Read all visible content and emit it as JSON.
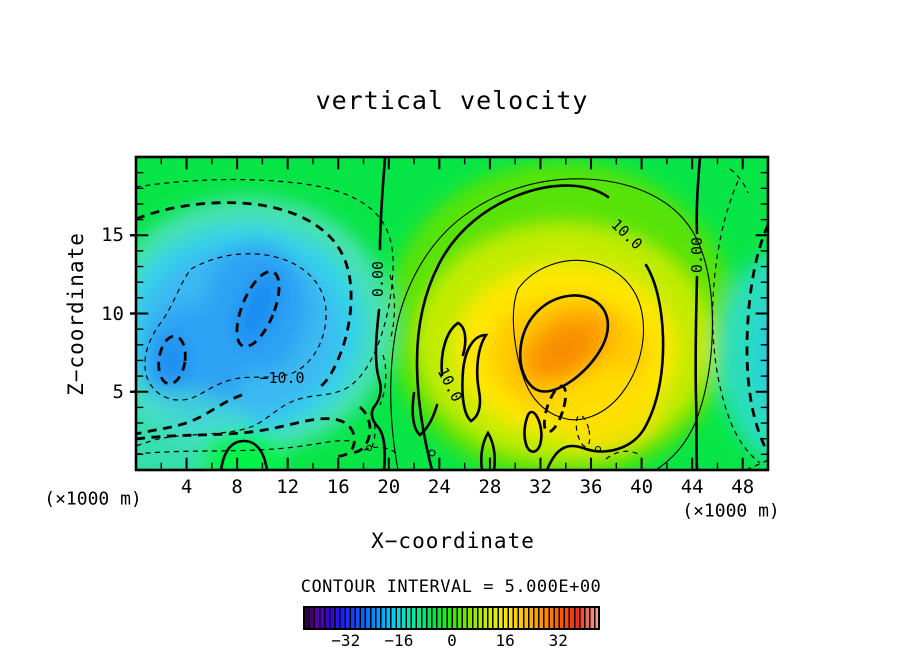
{
  "title": "vertical velocity",
  "y_axis": {
    "label": "Z−coordinate",
    "unit": "(×1000 m)",
    "ticks": [
      5,
      10,
      15
    ]
  },
  "x_axis": {
    "label": "X−coordinate",
    "unit": "(×1000 m)",
    "ticks": [
      4,
      8,
      12,
      16,
      20,
      24,
      28,
      32,
      36,
      40,
      44,
      48
    ]
  },
  "footer": {
    "contour_interval_label": "CONTOUR INTERVAL = 5.000E+00"
  },
  "colorbar": {
    "ticks": [
      -32,
      -16,
      0,
      16,
      32
    ],
    "labels": [
      "−32",
      "−16",
      "0",
      "16",
      "32"
    ]
  },
  "contour_labels": {
    "neg10": "−10.0",
    "zero_left": "0.00",
    "ten_low": "10.0",
    "ten_high": "10.0",
    "zero_right": "0.00"
  },
  "chart_data": {
    "type": "heatmap",
    "subtype": "filled-contour",
    "title": "vertical velocity",
    "xlabel": "X-coordinate (×1000 m)",
    "ylabel": "Z-coordinate (×1000 m)",
    "x_range": [
      0,
      50
    ],
    "y_range": [
      0,
      20
    ],
    "x_major_ticks": [
      4,
      8,
      12,
      16,
      20,
      24,
      28,
      32,
      36,
      40,
      44,
      48
    ],
    "y_major_ticks": [
      5,
      10,
      15
    ],
    "contour_interval": 5.0,
    "contour_interval_text": "5.000E+00",
    "colorbar_ticks": [
      -32,
      -16,
      0,
      16,
      32
    ],
    "colorbar_range": [
      -45,
      45
    ],
    "line_styles": {
      "positive": "solid",
      "negative": "dashed",
      "emphasized_every": 10
    },
    "labeled_contours": [
      {
        "value": -10,
        "label": "−10.0",
        "style": "thick-dashed",
        "approx_x": 11.3,
        "approx_z": 5.8
      },
      {
        "value": 0,
        "label": "0.00",
        "style": "thick-solid",
        "approx_x": 19.2,
        "approx_z": 12.2
      },
      {
        "value": 10,
        "label": "10.0",
        "style": "thick-solid",
        "approx_x": 24.3,
        "approx_z": 5.6
      },
      {
        "value": 10,
        "label": "10.0",
        "style": "thick-solid",
        "approx_x": 38.7,
        "approx_z": 15.0
      },
      {
        "value": 0,
        "label": "0.00",
        "style": "thick-solid",
        "approx_x": 44.4,
        "approx_z": 13.7
      }
    ],
    "features": [
      {
        "name": "downdraft-cell",
        "center_x": 9.5,
        "center_z": 10.2,
        "band_min": -20
      },
      {
        "name": "secondary-downdraft-core",
        "center_x": 2.8,
        "center_z": 7.3,
        "band_min": -20
      },
      {
        "name": "updraft-cell",
        "center_x": 34.0,
        "center_z": 8.0,
        "band_max": 20
      },
      {
        "name": "right-edge-downdraft",
        "center_x": 49.5,
        "center_z": 9.0,
        "band_min": -10
      }
    ]
  }
}
